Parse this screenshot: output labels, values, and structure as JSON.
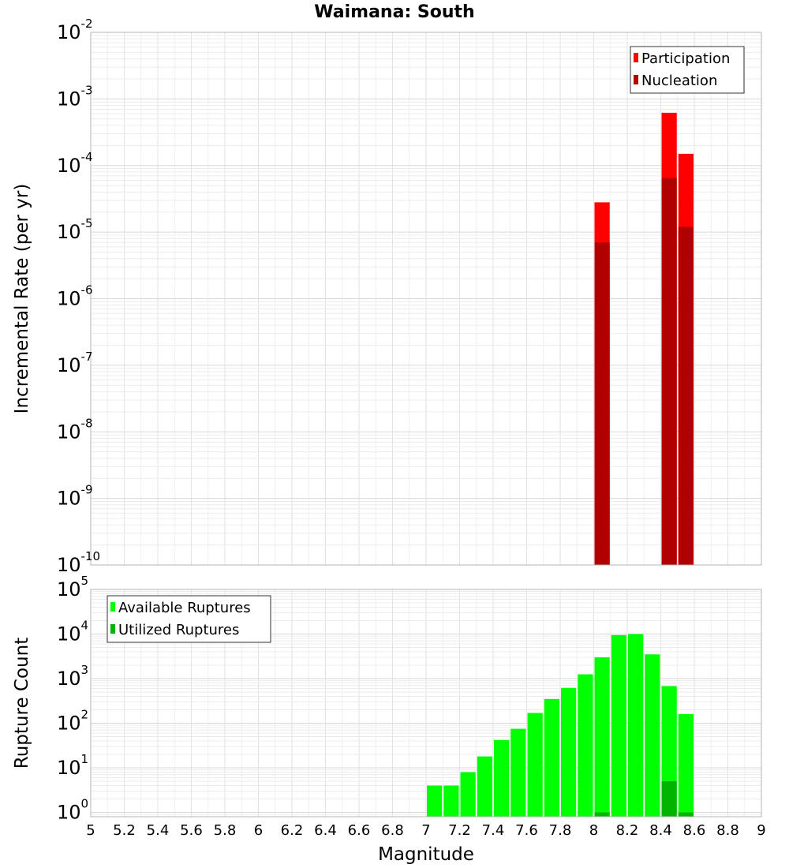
{
  "chart_data": [
    {
      "type": "bar",
      "title": "Waimana: South",
      "xlabel": "",
      "ylabel": "Incremental Rate (per yr)",
      "yscale": "log",
      "ylim": [
        1e-10,
        0.01
      ],
      "xlim": [
        5,
        9
      ],
      "bin_width": 0.1,
      "legend_position": "top-right",
      "series": [
        {
          "name": "Participation",
          "color": "#ff0000",
          "x": [
            8.05,
            8.45,
            8.55
          ],
          "values": [
            2.8e-05,
            0.00062,
            0.00015
          ]
        },
        {
          "name": "Nucleation",
          "color": "#b00000",
          "x": [
            8.05,
            8.45,
            8.55
          ],
          "values": [
            7e-06,
            6.5e-05,
            1.2e-05
          ]
        }
      ],
      "yticks": [
        {
          "base": "10",
          "exp": "-10",
          "value": 1e-10
        },
        {
          "base": "10",
          "exp": "-9",
          "value": 1e-09
        },
        {
          "base": "10",
          "exp": "-8",
          "value": 1e-08
        },
        {
          "base": "10",
          "exp": "-7",
          "value": 1e-07
        },
        {
          "base": "10",
          "exp": "-6",
          "value": 1e-06
        },
        {
          "base": "10",
          "exp": "-5",
          "value": 1e-05
        },
        {
          "base": "10",
          "exp": "-4",
          "value": 0.0001
        },
        {
          "base": "10",
          "exp": "-3",
          "value": 0.001
        },
        {
          "base": "10",
          "exp": "-2",
          "value": 0.01
        }
      ]
    },
    {
      "type": "bar",
      "title": "",
      "xlabel": "Magnitude",
      "ylabel": "Rupture Count",
      "yscale": "log",
      "ylim": [
        0.8,
        100000
      ],
      "xlim": [
        5,
        9
      ],
      "bin_width": 0.1,
      "legend_position": "top-left",
      "series": [
        {
          "name": "Available Ruptures",
          "color": "#00ff00",
          "x": [
            7.05,
            7.15,
            7.25,
            7.35,
            7.45,
            7.55,
            7.65,
            7.75,
            7.85,
            7.95,
            8.05,
            8.15,
            8.25,
            8.35,
            8.45,
            8.55
          ],
          "values": [
            4,
            4,
            8,
            18,
            42,
            75,
            170,
            350,
            620,
            1250,
            3000,
            9500,
            10000,
            3500,
            680,
            160
          ]
        },
        {
          "name": "Utilized Ruptures",
          "color": "#00b400",
          "x": [
            8.05,
            8.45,
            8.55
          ],
          "values": [
            1,
            5,
            1
          ]
        }
      ],
      "yticks": [
        {
          "base": "10",
          "exp": "0",
          "value": 1
        },
        {
          "base": "10",
          "exp": "1",
          "value": 10
        },
        {
          "base": "10",
          "exp": "2",
          "value": 100
        },
        {
          "base": "10",
          "exp": "3",
          "value": 1000
        },
        {
          "base": "10",
          "exp": "4",
          "value": 10000
        },
        {
          "base": "10",
          "exp": "5",
          "value": 100000
        }
      ],
      "xticks": [
        "5",
        "5.2",
        "5.4",
        "5.6",
        "5.8",
        "6",
        "6.2",
        "6.4",
        "6.6",
        "6.8",
        "7",
        "7.2",
        "7.4",
        "7.6",
        "7.8",
        "8",
        "8.2",
        "8.4",
        "8.6",
        "8.8",
        "9"
      ]
    }
  ]
}
